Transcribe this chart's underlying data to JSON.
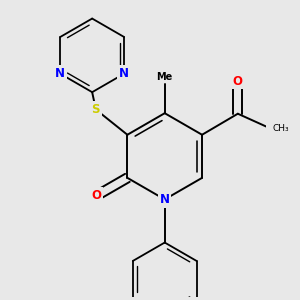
{
  "background_color": "#e8e8e8",
  "bond_color": "#000000",
  "atom_colors": {
    "N": "#0000ff",
    "O": "#ff0000",
    "S": "#cccc00",
    "C": "#000000"
  },
  "lw": 1.4,
  "lw_inner": 1.2,
  "fs": 8.5
}
